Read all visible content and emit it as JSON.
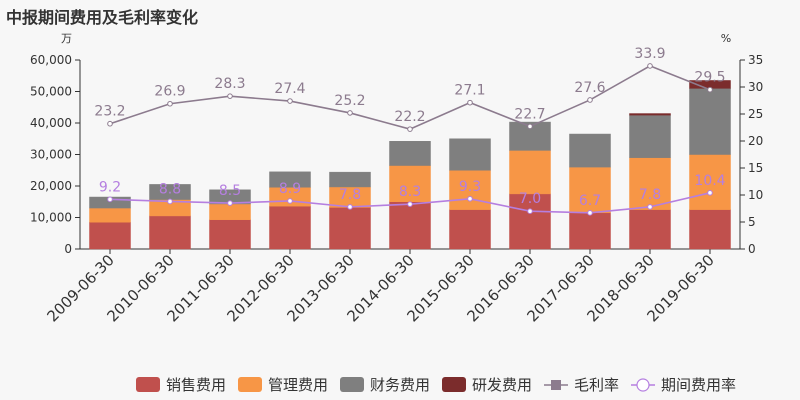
{
  "chart_data": {
    "title": "中报期间费用及毛利率变化",
    "type": "bar",
    "stacked": true,
    "categories": [
      "2009-06-30",
      "2010-06-30",
      "2011-06-30",
      "2012-06-30",
      "2013-06-30",
      "2014-06-30",
      "2015-06-30",
      "2016-06-30",
      "2017-06-30",
      "2018-06-30",
      "2019-06-30"
    ],
    "left_axis": {
      "unit": "万",
      "min": 0,
      "max": 60000,
      "ticks": [
        "0",
        "10,000",
        "20,000",
        "30,000",
        "40,000",
        "50,000",
        "60,000"
      ]
    },
    "right_axis": {
      "unit": "%",
      "min": 0,
      "max": 35,
      "ticks": [
        "0",
        "5",
        "10",
        "15",
        "20",
        "25",
        "30",
        "35"
      ]
    },
    "series": [
      {
        "name": "销售费用",
        "kind": "bar",
        "color": "#c0504d",
        "values": [
          8500,
          10500,
          9300,
          13600,
          13200,
          15000,
          12500,
          17500,
          11500,
          12500,
          12500
        ]
      },
      {
        "name": "管理费用",
        "kind": "bar",
        "color": "#f79646",
        "values": [
          4500,
          5200,
          5000,
          6000,
          6500,
          11500,
          12500,
          13800,
          14500,
          16500,
          17500
        ]
      },
      {
        "name": "财务费用",
        "kind": "bar",
        "color": "#7f7f7f",
        "values": [
          3500,
          4800,
          4500,
          4900,
          4700,
          7700,
          10000,
          9000,
          10500,
          13500,
          21000
        ]
      },
      {
        "name": "研发费用",
        "kind": "bar",
        "color": "#7b2c2c",
        "values": [
          0,
          0,
          0,
          0,
          0,
          0,
          0,
          0,
          0,
          500,
          2500
        ]
      },
      {
        "name": "毛利率",
        "kind": "line",
        "axis": "right",
        "color": "#8c7b8e",
        "values": [
          23.2,
          26.9,
          28.3,
          27.4,
          25.2,
          22.2,
          27.1,
          22.7,
          27.6,
          33.9,
          29.5
        ]
      },
      {
        "name": "期间费用率",
        "kind": "line",
        "axis": "right",
        "color": "#b57fe0",
        "values": [
          9.2,
          8.8,
          8.5,
          8.9,
          7.8,
          8.3,
          9.3,
          7.0,
          6.7,
          7.8,
          10.4
        ]
      }
    ],
    "legend": "bottom"
  }
}
